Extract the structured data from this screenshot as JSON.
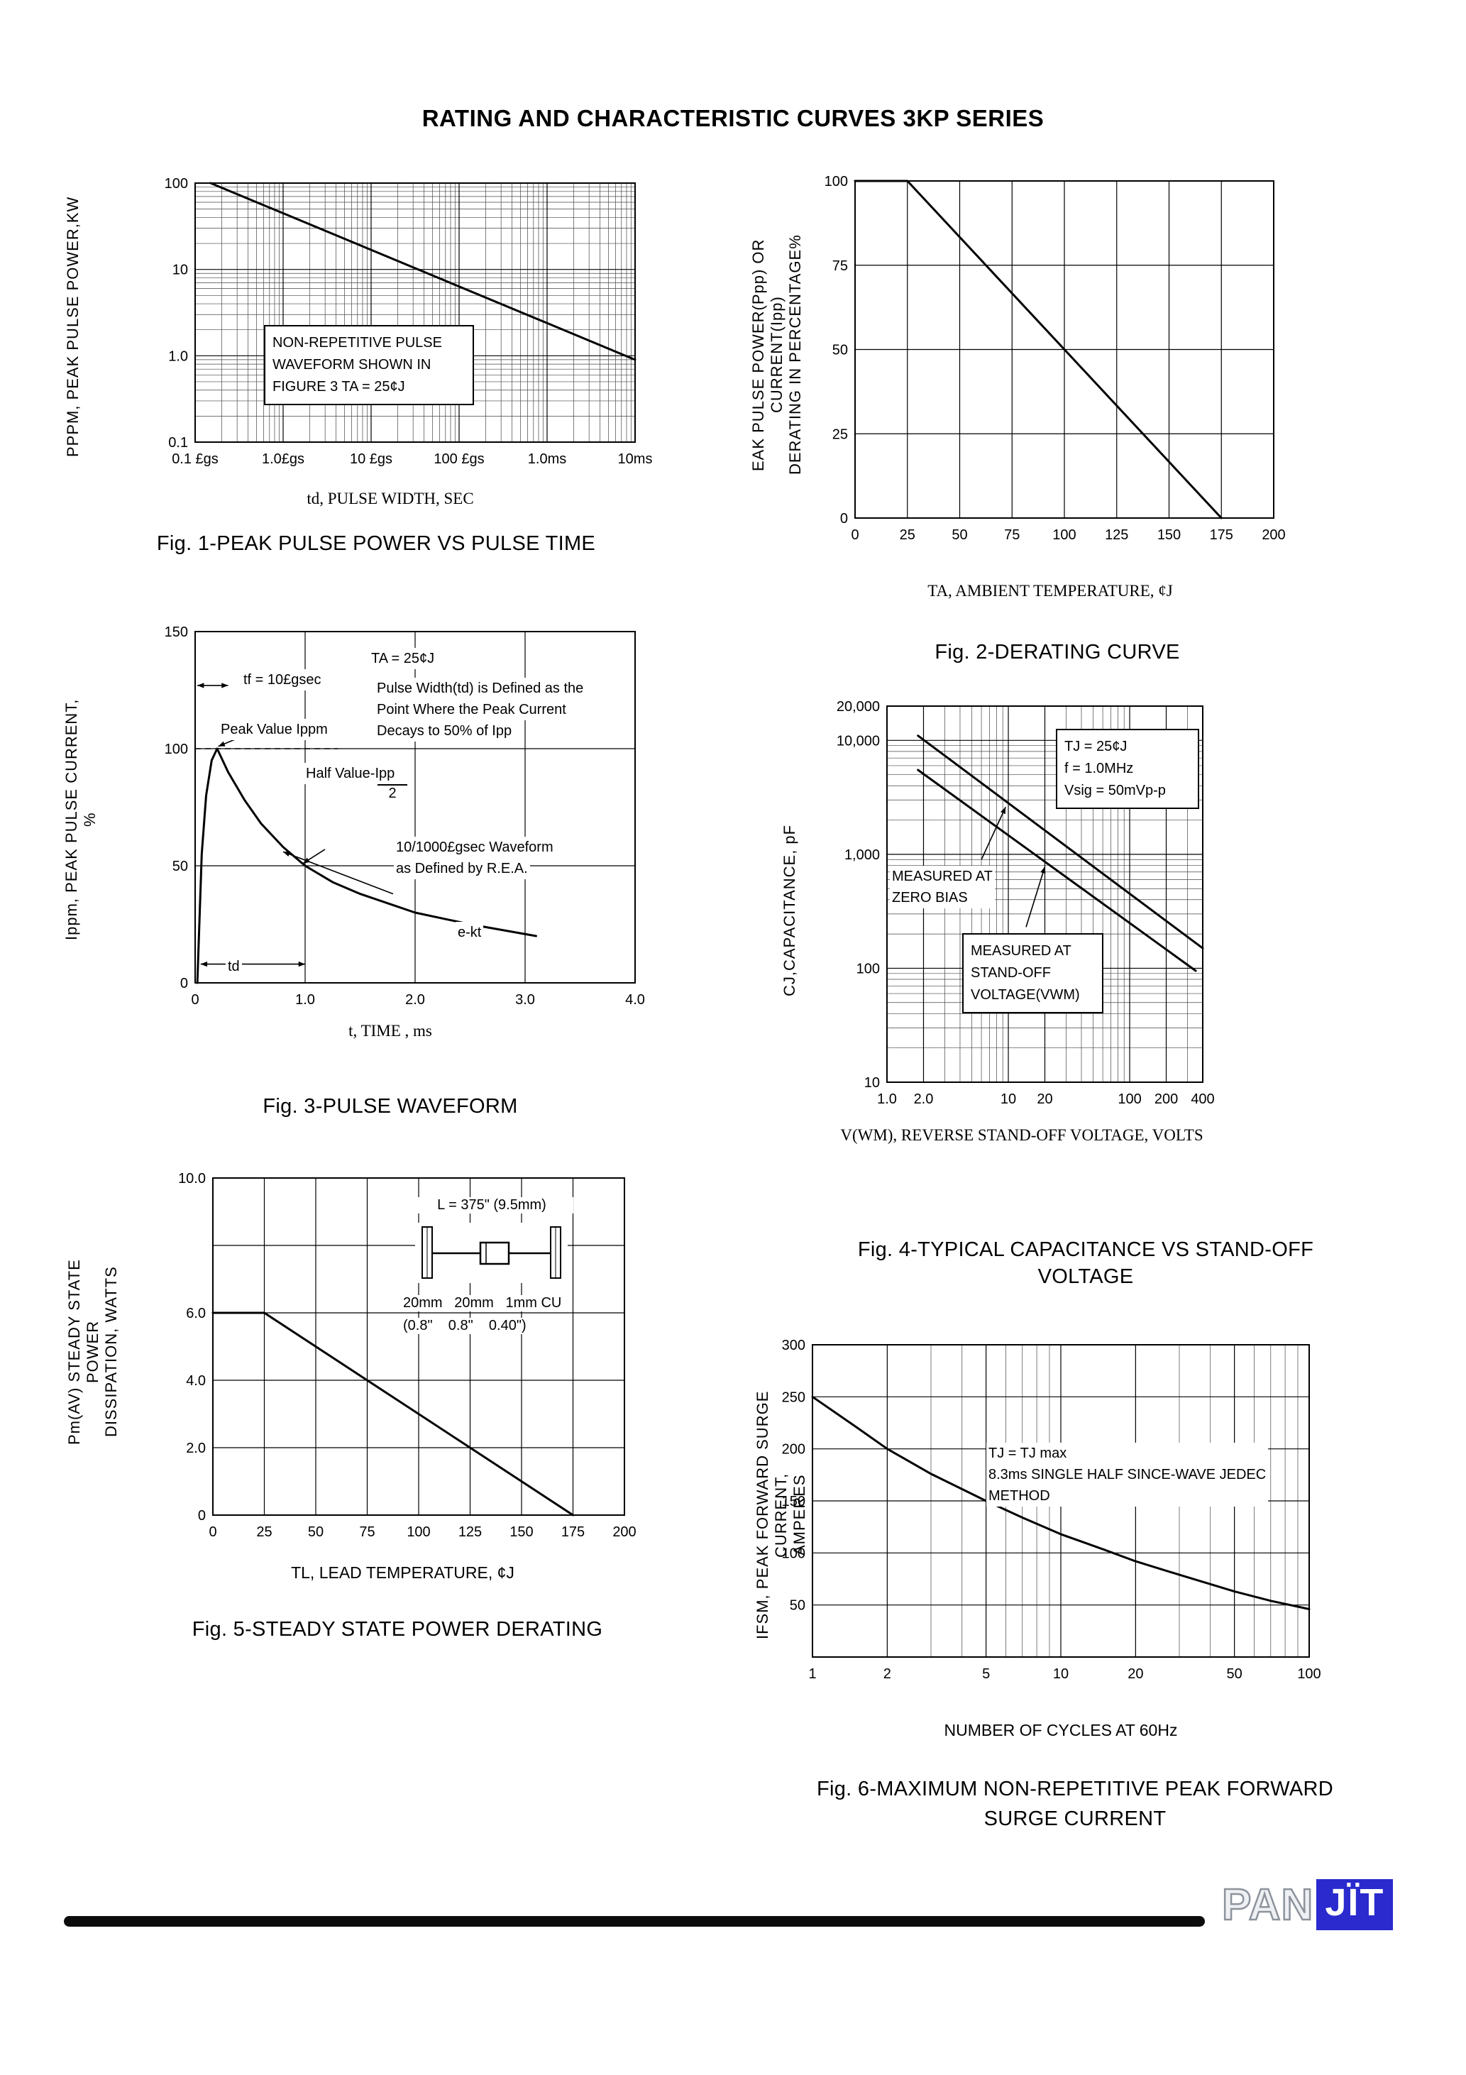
{
  "page": {
    "title": "RATING AND CHARACTERISTIC CURVES 3KP SERIES"
  },
  "footer": {
    "brand_pan": "PAN",
    "brand_jit": "JÏT"
  },
  "chart_data": [
    {
      "type": "line",
      "title": "Fig. 1-PEAK PULSE POWER VS PULSE TIME",
      "xlabel": "td, PULSE WIDTH, SEC",
      "ylabel": "PPPM, PEAK PULSE POWER,KW",
      "xscale": "log",
      "yscale": "log",
      "xmin": 1e-07,
      "xmax": 0.01,
      "ymin": 0.1,
      "ymax": 100,
      "xticks": [
        {
          "v": 1e-07,
          "label": "0.1 £gs"
        },
        {
          "v": 1e-06,
          "label": "1.0£gs"
        },
        {
          "v": 1e-05,
          "label": "10 £gs"
        },
        {
          "v": 0.0001,
          "label": "100 £gs"
        },
        {
          "v": 0.001,
          "label": "1.0ms"
        },
        {
          "v": 0.01,
          "label": "10ms"
        }
      ],
      "yticks": [
        {
          "v": 0.1,
          "label": "0.1"
        },
        {
          "v": 1,
          "label": "1.0"
        },
        {
          "v": 10,
          "label": "10"
        },
        {
          "v": 100,
          "label": "100"
        }
      ],
      "minor_x": true,
      "minor_y": true,
      "margins": {
        "l": 85,
        "r": 15,
        "t": 15,
        "b": 50
      },
      "series": [
        {
          "name": "peak-pulse-power",
          "points": [
            [
              1.5e-07,
              100
            ],
            [
              0.01,
              0.9
            ]
          ]
        }
      ],
      "annotation_box": [
        "NON-REPETITIVE PULSE",
        "WAVEFORM SHOWN IN",
        "FIGURE 3 TA = 25¢J"
      ]
    },
    {
      "type": "line",
      "title": "Fig. 2-DERATING CURVE",
      "xlabel": "TA, AMBIENT TEMPERATURE, ¢J",
      "ylabel_lines": [
        "EAK PULSE POWER(Ppp) OR CURRENT(Ipp)",
        "DERATING IN PERCENTAGE%"
      ],
      "xscale": "linear",
      "yscale": "linear",
      "xmin": 0,
      "xmax": 200,
      "ymin": 0,
      "ymax": 100,
      "xticks": [
        {
          "v": 0,
          "label": "0"
        },
        {
          "v": 25,
          "label": "25"
        },
        {
          "v": 50,
          "label": "50"
        },
        {
          "v": 75,
          "label": "75"
        },
        {
          "v": 100,
          "label": "100"
        },
        {
          "v": 125,
          "label": "125"
        },
        {
          "v": 150,
          "label": "150"
        },
        {
          "v": 175,
          "label": "175"
        },
        {
          "v": 200,
          "label": "200"
        }
      ],
      "yticks": [
        {
          "v": 0,
          "label": "0"
        },
        {
          "v": 25,
          "label": "25"
        },
        {
          "v": 50,
          "label": "50"
        },
        {
          "v": 75,
          "label": "75"
        },
        {
          "v": 100,
          "label": "100"
        }
      ],
      "margins": {
        "l": 60,
        "r": 20,
        "t": 15,
        "b": 45
      },
      "series": [
        {
          "name": "derating",
          "points": [
            [
              0,
              100
            ],
            [
              25,
              100
            ],
            [
              175,
              0
            ]
          ]
        }
      ]
    },
    {
      "type": "line",
      "title": "Fig. 3-PULSE WAVEFORM",
      "xlabel": "t, TIME , ms",
      "ylabel": "Ippm, PEAK PULSE CURRENT, %",
      "xscale": "linear",
      "yscale": "linear",
      "xmin": 0,
      "xmax": 4,
      "ymin": 0,
      "ymax": 150,
      "xticks": [
        {
          "v": 0,
          "label": "0"
        },
        {
          "v": 1,
          "label": "1.0"
        },
        {
          "v": 2,
          "label": "2.0"
        },
        {
          "v": 3,
          "label": "3.0"
        },
        {
          "v": 4,
          "label": "4.0"
        }
      ],
      "yticks": [
        {
          "v": 0,
          "label": "0"
        },
        {
          "v": 50,
          "label": "50"
        },
        {
          "v": 100,
          "label": "100"
        },
        {
          "v": 150,
          "label": "150"
        }
      ],
      "margins": {
        "l": 85,
        "r": 15,
        "t": 20,
        "b": 45
      },
      "series": [
        {
          "name": "pulse-waveform",
          "points": [
            [
              0.02,
              0
            ],
            [
              0.06,
              55
            ],
            [
              0.1,
              80
            ],
            [
              0.15,
              95
            ],
            [
              0.2,
              100
            ],
            [
              0.3,
              90
            ],
            [
              0.45,
              78
            ],
            [
              0.6,
              68
            ],
            [
              0.8,
              58
            ],
            [
              1.0,
              50
            ],
            [
              1.25,
              43
            ],
            [
              1.5,
              38
            ],
            [
              1.75,
              34
            ],
            [
              2.0,
              30
            ],
            [
              2.5,
              25
            ],
            [
              3.1,
              20
            ]
          ]
        }
      ],
      "lines": [
        {
          "x1": 0,
          "y1": 100,
          "x2": 1.3,
          "y2": 100,
          "dash": true
        },
        {
          "x1": 0.05,
          "y1": 8,
          "x2": 1.0,
          "y2": 8,
          "arrow2": true
        },
        {
          "x1": 0.02,
          "y1": 127,
          "x2": 0.3,
          "y2": 127,
          "arrow2": true
        },
        {
          "x1": 0.52,
          "y1": 107,
          "x2": 0.21,
          "y2": 101,
          "arrow": true
        },
        {
          "x1": 1.18,
          "y1": 57,
          "x2": 0.98,
          "y2": 51,
          "arrow": true
        },
        {
          "x1": 1.8,
          "y1": 38,
          "x2": 0.8,
          "y2": 56,
          "arrow": true
        }
      ],
      "annotations": {
        "ta": "TA = 25¢J",
        "tf": "tf = 10£gsec",
        "pw1": "Pulse Width(td) is Defined as the",
        "pw2": "Point Where the Peak Current",
        "pw3": "Decays to 50% of Ipp",
        "peak": "Peak Value Ippm",
        "half": "Half Value-Ipp",
        "half_denom": "2",
        "wave1": "10/1000£gsec Waveform",
        "wave2": "as Defined by R.E.A.",
        "ekt": "e-kt",
        "td": "td"
      }
    },
    {
      "type": "line",
      "title": "Fig. 4-TYPICAL CAPACITANCE VS STAND-OFF VOLTAGE",
      "title_lines": [
        "Fig. 4-TYPICAL CAPACITANCE VS STAND-OFF",
        "VOLTAGE"
      ],
      "xlabel": "V(WM), REVERSE STAND-OFF VOLTAGE, VOLTS",
      "ylabel": "CJ,CAPACITANCE, pF",
      "xscale": "log",
      "yscale": "log",
      "xmin": 1,
      "xmax": 400,
      "ymin": 10,
      "ymax": 20000,
      "xticks": [
        {
          "v": 1,
          "label": "1.0"
        },
        {
          "v": 2,
          "label": "2.0"
        },
        {
          "v": 10,
          "label": "10"
        },
        {
          "v": 20,
          "label": "20"
        },
        {
          "v": 100,
          "label": "100"
        },
        {
          "v": 200,
          "label": "200"
        },
        {
          "v": 400,
          "label": "400"
        }
      ],
      "yticks": [
        {
          "v": 10,
          "label": "10"
        },
        {
          "v": 100,
          "label": "100"
        },
        {
          "v": 1000,
          "label": "1,000"
        },
        {
          "v": 10000,
          "label": "10,000"
        },
        {
          "v": 20000,
          "label": "20,000"
        }
      ],
      "minor_x": true,
      "minor_y": true,
      "margins": {
        "l": 80,
        "r": 20,
        "t": 25,
        "b": 45
      },
      "series": [
        {
          "name": "zero-bias",
          "points": [
            [
              1.8,
              11000
            ],
            [
              400,
              150
            ]
          ]
        },
        {
          "name": "stand-off-voltage",
          "points": [
            [
              1.8,
              5500
            ],
            [
              350,
              95
            ]
          ]
        }
      ],
      "lines": [
        {
          "x1": 6,
          "y1": 900,
          "x2": 9.5,
          "y2": 2600,
          "arrow": true
        },
        {
          "x1": 14,
          "y1": 230,
          "x2": 20,
          "y2": 780,
          "arrow": true
        }
      ],
      "annotations": {
        "cond1": "TJ = 25¢J",
        "cond2": "f = 1.0MHz",
        "cond3": "Vsig = 50mVp-p",
        "zero1": "MEASURED AT",
        "zero2": "ZERO BIAS",
        "so1": "MEASURED AT",
        "so2": "STAND-OFF",
        "so3": "VOLTAGE(VWM)"
      }
    },
    {
      "type": "line",
      "title": "Fig. 5-STEADY STATE POWER DERATING",
      "xlabel": "TL, LEAD TEMPERATURE, ¢J",
      "ylabel_lines": [
        "Pm(AV) STEADY STATE POWER",
        "DISSIPATION, WATTS"
      ],
      "xscale": "linear",
      "yscale": "linear",
      "xmin": 0,
      "xmax": 200,
      "ymin": 0,
      "ymax": 10,
      "xticks": [
        {
          "v": 0,
          "label": "0"
        },
        {
          "v": 25,
          "label": "25"
        },
        {
          "v": 50,
          "label": "50"
        },
        {
          "v": 75,
          "label": "75"
        },
        {
          "v": 100,
          "label": "100"
        },
        {
          "v": 125,
          "label": "125"
        },
        {
          "v": 150,
          "label": "150"
        },
        {
          "v": 175,
          "label": "175"
        },
        {
          "v": 200,
          "label": "200"
        }
      ],
      "yticks": [
        {
          "v": 0,
          "label": "0"
        },
        {
          "v": 2,
          "label": "2.0"
        },
        {
          "v": 4,
          "label": "4.0"
        },
        {
          "v": 6,
          "label": "6.0"
        },
        {
          "v": 10,
          "label": "10.0"
        }
      ],
      "ygrid": [
        2,
        4,
        6,
        8
      ],
      "margins": {
        "l": 65,
        "r": 20,
        "t": 20,
        "b": 45
      },
      "series": [
        {
          "name": "steady-state-power",
          "points": [
            [
              0,
              6
            ],
            [
              25,
              6
            ],
            [
              175,
              0
            ]
          ]
        }
      ],
      "inset": {
        "l_label": "L = 375\" (9.5mm)",
        "dims1": "20mm   20mm   1mm CU",
        "dims2": "(0.8\"    0.8\"    0.40\")"
      }
    },
    {
      "type": "line",
      "title": "Fig. 6-MAXIMUM NON-REPETITIVE PEAK FORWARD SURGE CURRENT",
      "title_lines": [
        "Fig. 6-MAXIMUM NON-REPETITIVE PEAK FORWARD",
        "SURGE CURRENT"
      ],
      "xlabel": "NUMBER OF CYCLES AT 60Hz",
      "ylabel_lines": [
        "IFSM, PEAK FORWARD SURGE CURRENT,",
        "AMPERES"
      ],
      "xscale": "log",
      "yscale": "linear",
      "xmin": 1,
      "xmax": 100,
      "ymin": 0,
      "ymax": 300,
      "xticks": [
        {
          "v": 1,
          "label": "1"
        },
        {
          "v": 2,
          "label": "2"
        },
        {
          "v": 5,
          "label": "5"
        },
        {
          "v": 10,
          "label": "10"
        },
        {
          "v": 20,
          "label": "20"
        },
        {
          "v": 50,
          "label": "50"
        },
        {
          "v": 100,
          "label": "100"
        }
      ],
      "yticks": [
        {
          "v": 50,
          "label": "50"
        },
        {
          "v": 100,
          "label": "100"
        },
        {
          "v": 150,
          "label": "150"
        },
        {
          "v": 200,
          "label": "200"
        },
        {
          "v": 250,
          "label": "250"
        },
        {
          "v": 300,
          "label": "300"
        }
      ],
      "ygrid": [
        50,
        100,
        150,
        200,
        250
      ],
      "minor_x": true,
      "margins": {
        "l": 70,
        "r": 20,
        "t": 25,
        "b": 45
      },
      "series": [
        {
          "name": "surge-current",
          "points": [
            [
              1,
              250
            ],
            [
              1.5,
              221
            ],
            [
              2,
              200
            ],
            [
              3,
              176
            ],
            [
              5,
              150
            ],
            [
              7,
              134
            ],
            [
              10,
              118
            ],
            [
              15,
              103
            ],
            [
              20,
              92
            ],
            [
              30,
              79
            ],
            [
              50,
              63
            ],
            [
              70,
              54
            ],
            [
              100,
              46
            ]
          ]
        }
      ],
      "annotations": {
        "a1": "TJ = TJ max",
        "a2": "8.3ms SINGLE HALF SINCE-WAVE JEDEC",
        "a3": "METHOD"
      }
    }
  ]
}
